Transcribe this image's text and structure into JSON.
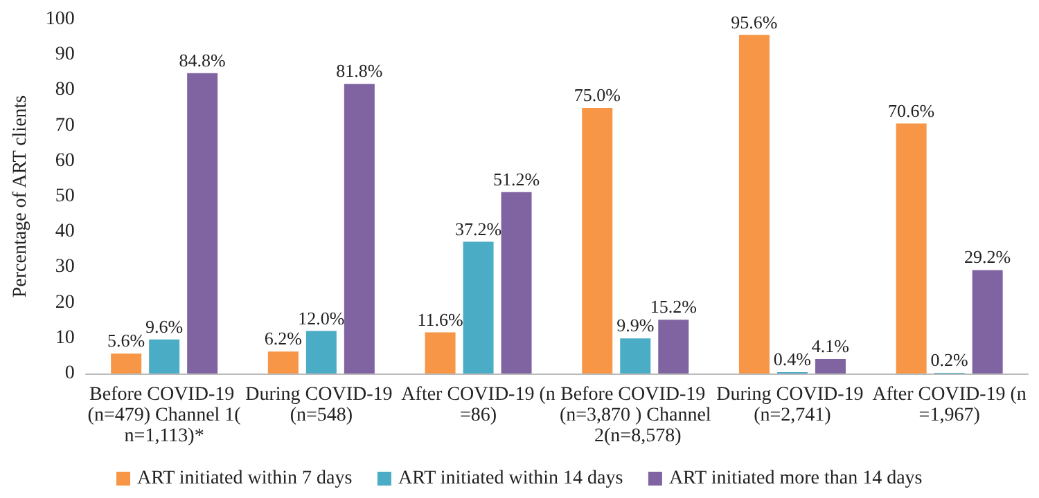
{
  "chart_data": {
    "type": "bar",
    "ylabel": "Percentage of ART clients",
    "categories": [
      "Before COVID-19 (n=479) Channel 1(n=1,113)*",
      "During COVID-19 (n=548)",
      "After COVID-19 (n=86)",
      "Before COVID-19 (n=3,870 ) Channel 2(n=8,578)",
      "During COVID-19 (n=2,741)",
      "After COVID-19 (n=1,967)"
    ],
    "series": [
      {
        "name": "ART initiated within 7 days",
        "color": "#f79646",
        "values": [
          5.6,
          6.2,
          11.6,
          75.0,
          95.6,
          70.6
        ],
        "value_labels": [
          "5.6%",
          "6.2%",
          "11.6%",
          "75.0%",
          "95.6%",
          "70.6%"
        ]
      },
      {
        "name": "ART initiated within 14 days",
        "color": "#4bacc6",
        "values": [
          9.6,
          12.0,
          37.2,
          9.9,
          0.4,
          0.2
        ],
        "value_labels": [
          "9.6%",
          "12.0%",
          "37.2%",
          "9.9%",
          "0.4%",
          "0.2%"
        ]
      },
      {
        "name": "ART initiated more than 14 days",
        "color": "#8064a2",
        "values": [
          84.8,
          81.8,
          51.2,
          15.2,
          4.1,
          29.2
        ],
        "value_labels": [
          "84.8%",
          "81.8%",
          "51.2%",
          "15.2%",
          "4.1%",
          "29.2%"
        ]
      }
    ],
    "ylim": [
      0,
      100
    ],
    "yticks": [
      0,
      10,
      20,
      30,
      40,
      50,
      60,
      70,
      80,
      90,
      100
    ],
    "grid": false,
    "legend": "bottom"
  }
}
